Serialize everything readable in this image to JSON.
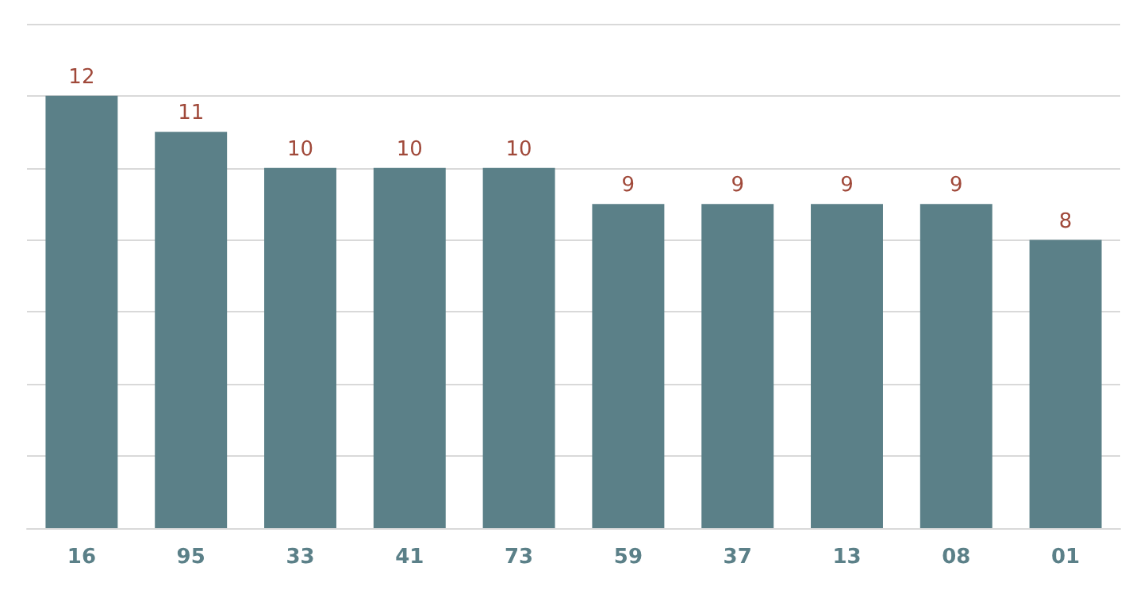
{
  "chart_data": {
    "type": "bar",
    "categories": [
      "16",
      "95",
      "33",
      "41",
      "73",
      "59",
      "37",
      "13",
      "08",
      "01"
    ],
    "values": [
      12,
      11,
      10,
      10,
      10,
      9,
      9,
      9,
      9,
      8
    ],
    "color": "#5b8088",
    "ylim": [
      0,
      14
    ],
    "yticks": [
      0,
      2,
      4,
      6,
      8,
      10,
      12,
      14
    ],
    "grid": "y",
    "tick_labels": "x",
    "data_labels": true
  }
}
